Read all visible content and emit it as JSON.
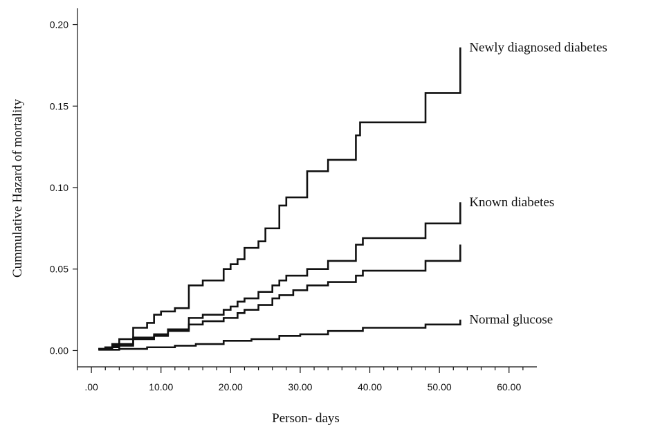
{
  "chart_data": {
    "type": "line",
    "step": true,
    "title": "",
    "xlabel": "Person- days",
    "ylabel": "Cummulative Hazard of mortality",
    "xlim": [
      -2,
      64
    ],
    "ylim": [
      -0.01,
      0.21
    ],
    "xticks": [
      0,
      10,
      20,
      30,
      40,
      50,
      60
    ],
    "xtick_labels": [
      ".00",
      "10.00",
      "20.00",
      "30.00",
      "40.00",
      "50.00",
      "60.00"
    ],
    "yticks": [
      0,
      0.05,
      0.1,
      0.15,
      0.2
    ],
    "ytick_labels": [
      "0.00",
      "0.05",
      "0.10",
      "0.15",
      "0.20"
    ],
    "grid": false,
    "legend": "none",
    "colors": {
      "line": "#111111",
      "text": "#111111",
      "background": "#ffffff"
    },
    "series": [
      {
        "name": "Newly diagnosed diabetes",
        "x": [
          1,
          2,
          3,
          4,
          6,
          8,
          9,
          10,
          12,
          14,
          16,
          19,
          20,
          21,
          22,
          24,
          25,
          27,
          28,
          31,
          34,
          38,
          38.6,
          39,
          48,
          53,
          53
        ],
        "y": [
          0.001,
          0.002,
          0.004,
          0.007,
          0.014,
          0.017,
          0.022,
          0.024,
          0.026,
          0.04,
          0.043,
          0.05,
          0.053,
          0.056,
          0.063,
          0.067,
          0.075,
          0.089,
          0.094,
          0.11,
          0.117,
          0.132,
          0.14,
          0.14,
          0.158,
          0.158,
          0.186
        ]
      },
      {
        "name": "Known diabetes",
        "x": [
          1,
          2,
          3,
          4,
          6,
          9,
          11,
          14,
          16,
          19,
          20,
          21,
          22,
          24,
          26,
          27,
          28,
          31,
          34,
          38,
          39,
          48,
          53,
          53
        ],
        "y": [
          0.001,
          0.002,
          0.003,
          0.004,
          0.008,
          0.01,
          0.013,
          0.02,
          0.022,
          0.025,
          0.027,
          0.03,
          0.032,
          0.036,
          0.04,
          0.043,
          0.046,
          0.05,
          0.055,
          0.065,
          0.069,
          0.078,
          0.078,
          0.091
        ]
      },
      {
        "name": "",
        "x": [
          1,
          3,
          4,
          6,
          9,
          11,
          14,
          16,
          19,
          21,
          22,
          24,
          26,
          27,
          29,
          31,
          34,
          38,
          39,
          48,
          53,
          53
        ],
        "y": [
          0.001,
          0.002,
          0.003,
          0.007,
          0.009,
          0.012,
          0.016,
          0.018,
          0.02,
          0.023,
          0.025,
          0.028,
          0.032,
          0.034,
          0.037,
          0.04,
          0.042,
          0.046,
          0.049,
          0.055,
          0.055,
          0.065
        ]
      },
      {
        "name": "Normal glucose",
        "x": [
          1,
          4,
          8,
          12,
          15,
          19,
          23,
          27,
          30,
          34,
          39,
          48,
          53,
          53
        ],
        "y": [
          0.0005,
          0.001,
          0.002,
          0.003,
          0.004,
          0.006,
          0.007,
          0.009,
          0.01,
          0.012,
          0.014,
          0.016,
          0.016,
          0.019
        ]
      }
    ]
  }
}
